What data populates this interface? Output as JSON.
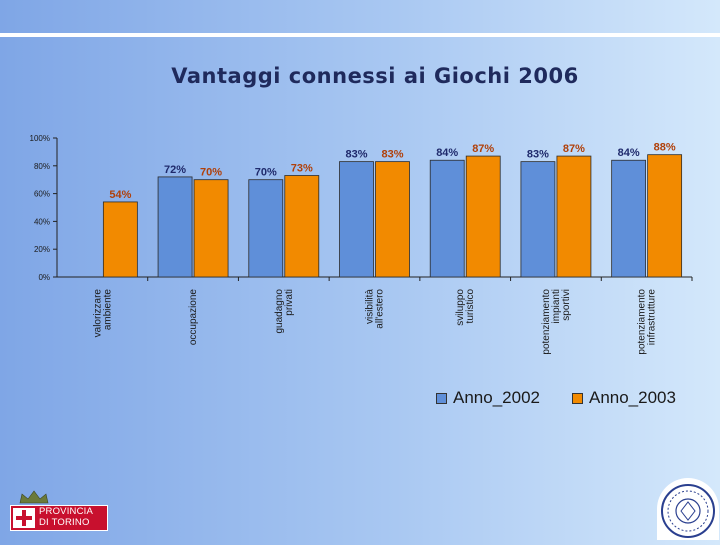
{
  "slide": {
    "title": "Vantaggi connessi ai Giochi 2006",
    "logo_left_text_line1": "PROVINCIA",
    "logo_left_text_line2": "DI TORINO"
  },
  "colors": {
    "series_2002": "#5f8fd9",
    "series_2003": "#f28a00",
    "label_2002": "#1f2a6c",
    "label_2003": "#b0400a"
  },
  "chart_data": {
    "type": "bar",
    "categories": [
      [
        "valorizzare",
        "ambiente"
      ],
      [
        "occupazione"
      ],
      [
        "guadagno",
        "privati"
      ],
      [
        "visibilità",
        "all'estero"
      ],
      [
        "sviluppo",
        "turistico"
      ],
      [
        "potenziamento",
        "impianti",
        "sportivi"
      ],
      [
        "potenziamento",
        "infrastrutture"
      ]
    ],
    "series": [
      {
        "name": "Anno_2002",
        "values": [
          null,
          72,
          70,
          83,
          84,
          83,
          84
        ]
      },
      {
        "name": "Anno_2003",
        "values": [
          54,
          70,
          73,
          83,
          87,
          87,
          88
        ]
      }
    ],
    "ylim": [
      0,
      100
    ],
    "yticks": [
      "0%",
      "20%",
      "40%",
      "60%",
      "80%",
      "100%"
    ],
    "ytick_values": [
      0,
      20,
      40,
      60,
      80,
      100
    ],
    "value_suffix": "%",
    "legend_position": "bottom-right",
    "grid": false
  }
}
